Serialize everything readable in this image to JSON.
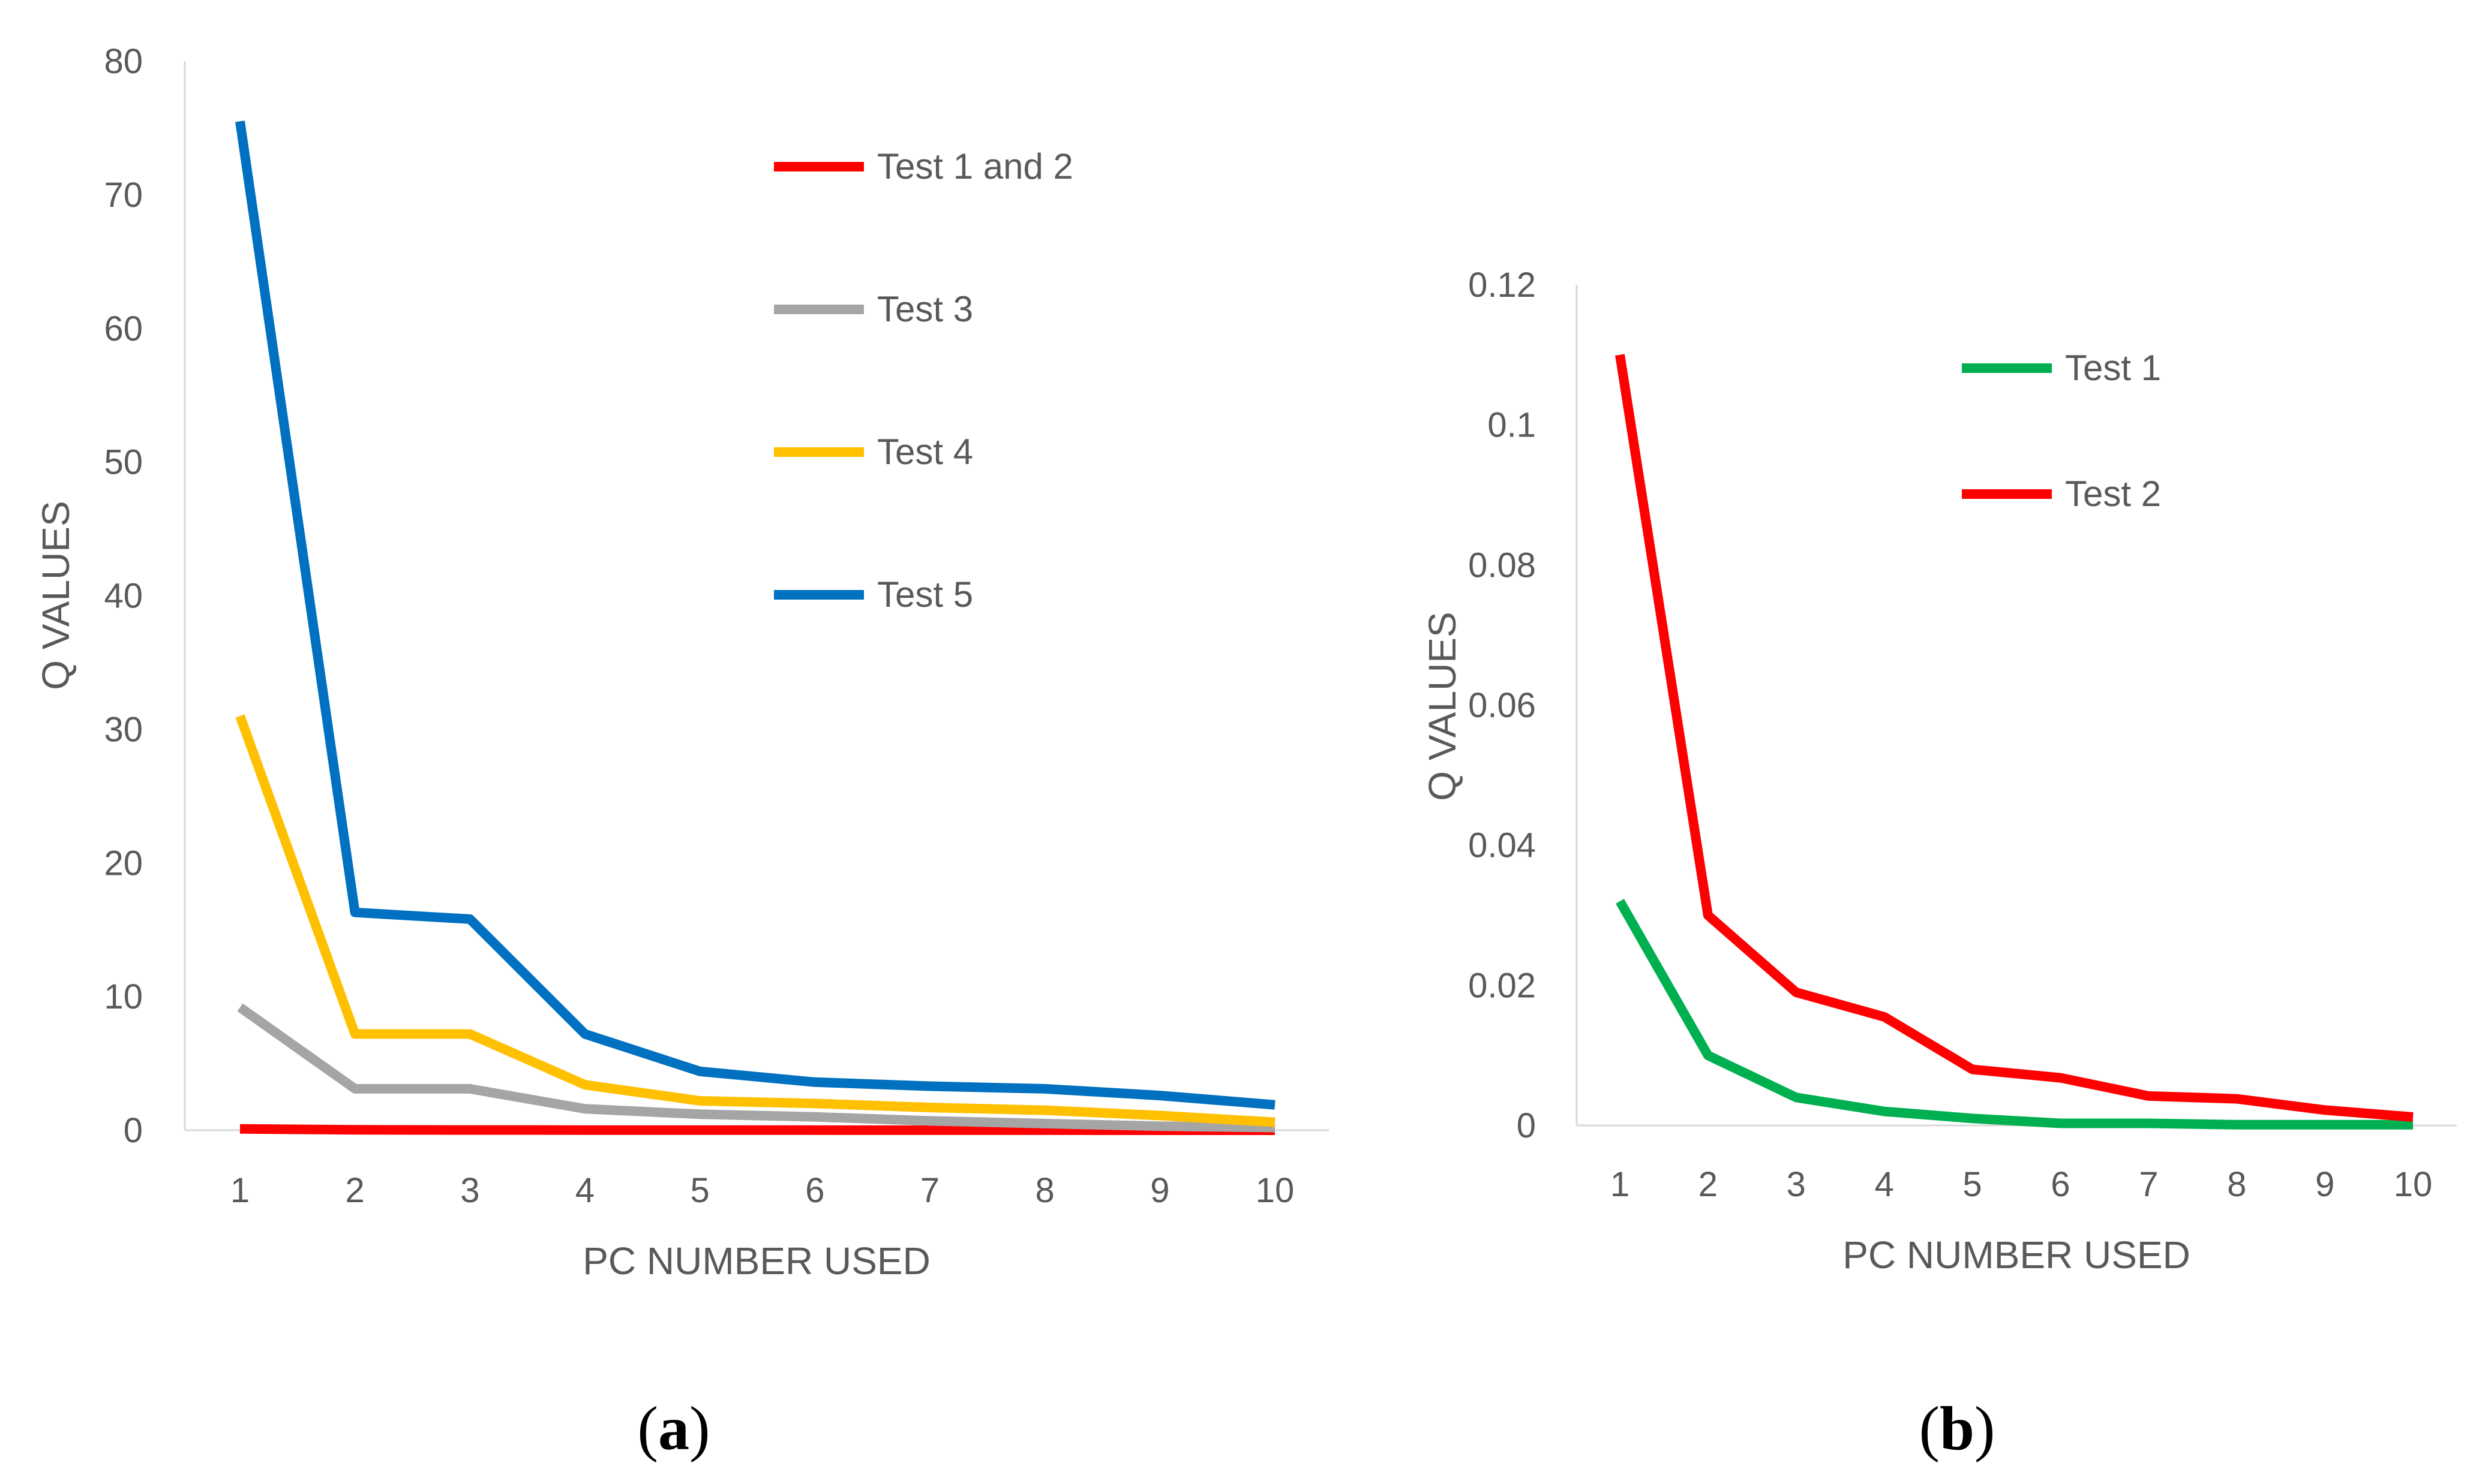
{
  "chart_data": [
    {
      "panel_label": "a",
      "type": "line",
      "title": "",
      "xlabel": "PC NUMBER USED",
      "ylabel": "Q VALUES",
      "x": [
        1,
        2,
        3,
        4,
        5,
        6,
        7,
        8,
        9,
        10
      ],
      "xticks": [
        "1",
        "2",
        "3",
        "4",
        "5",
        "6",
        "7",
        "8",
        "9",
        "10"
      ],
      "ylim": [
        0,
        80
      ],
      "yticks": [
        "0",
        "10",
        "20",
        "30",
        "40",
        "50",
        "60",
        "70",
        "80"
      ],
      "ytick_values": [
        0,
        10,
        20,
        30,
        40,
        50,
        60,
        70,
        80
      ],
      "grid": false,
      "legend_position": "top-center",
      "series": [
        {
          "name": "Test 1 and 2",
          "color": "#FF0000",
          "values": [
            0.1,
            0.03,
            0.02,
            0.015,
            0.008,
            0.007,
            0.004,
            0.004,
            0.002,
            0.001
          ]
        },
        {
          "name": "Test 3",
          "color": "#A5A5A5",
          "values": [
            9.2,
            3.1,
            3.1,
            1.6,
            1.2,
            1.0,
            0.7,
            0.5,
            0.3,
            0.2
          ]
        },
        {
          "name": "Test 4",
          "color": "#FFC000",
          "values": [
            31.0,
            7.2,
            7.2,
            3.4,
            2.2,
            2.0,
            1.7,
            1.5,
            1.1,
            0.6
          ]
        },
        {
          "name": "Test 5",
          "color": "#0070C0",
          "values": [
            75.5,
            16.3,
            15.8,
            7.2,
            4.4,
            3.6,
            3.3,
            3.1,
            2.6,
            1.9
          ]
        }
      ]
    },
    {
      "panel_label": "b",
      "type": "line",
      "title": "",
      "xlabel": "PC NUMBER USED",
      "ylabel": "Q VALUES",
      "x": [
        1,
        2,
        3,
        4,
        5,
        6,
        7,
        8,
        9,
        10
      ],
      "xticks": [
        "1",
        "2",
        "3",
        "4",
        "5",
        "6",
        "7",
        "8",
        "9",
        "10"
      ],
      "ylim": [
        0,
        0.12
      ],
      "yticks": [
        "0",
        "0.02",
        "0.04",
        "0.06",
        "0.08",
        "0.1",
        "0.12"
      ],
      "ytick_values": [
        0,
        0.02,
        0.04,
        0.06,
        0.08,
        0.1,
        0.12
      ],
      "grid": false,
      "legend_position": "top-center",
      "series": [
        {
          "name": "Test 1",
          "color": "#00B050",
          "values": [
            0.032,
            0.01,
            0.004,
            0.002,
            0.001,
            0.0003,
            0.0003,
            0.0001,
            0.0001,
            0.0001
          ]
        },
        {
          "name": "Test 2",
          "color": "#FF0000",
          "values": [
            0.11,
            0.03,
            0.019,
            0.0155,
            0.008,
            0.0068,
            0.0042,
            0.0038,
            0.0022,
            0.0012
          ]
        }
      ]
    }
  ]
}
